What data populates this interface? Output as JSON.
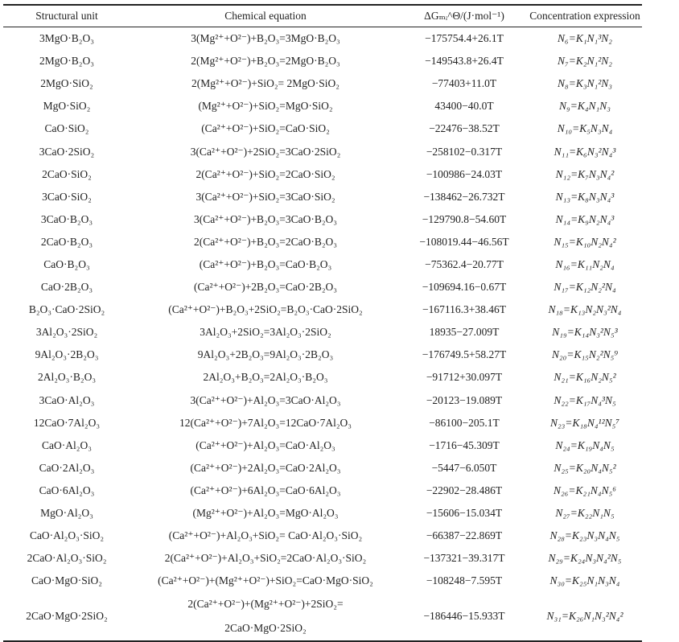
{
  "headers": [
    "Structural unit",
    "Chemical equation",
    "ΔGₘᵢ^Θ/(J·mol⁻¹)",
    "Concentration expression"
  ],
  "rows": [
    {
      "unit": "3MgO·B₂O₃",
      "eq": "3(Mg²⁺+O²⁻)+B₂O₃=3MgO·B₂O₃",
      "dg": "−175754.4+26.1T",
      "conc": "N₆=K₁N₁³N₂"
    },
    {
      "unit": "2MgO·B₂O₃",
      "eq": "2(Mg²⁺+O²⁻)+B₂O₃=2MgO·B₂O₃",
      "dg": "−149543.8+26.4T",
      "conc": "N₇=K₂N₁²N₂"
    },
    {
      "unit": "2MgO·SiO₂",
      "eq": "2(Mg²⁺+O²⁻)+SiO₂= 2MgO·SiO₂",
      "dg": "−77403+11.0T",
      "conc": "N₈=K₃N₁²N₃"
    },
    {
      "unit": "MgO·SiO₂",
      "eq": "(Mg²⁺+O²⁻)+SiO₂=MgO·SiO₂",
      "dg": "43400−40.0T",
      "conc": "N₉=K₄N₁N₃"
    },
    {
      "unit": "CaO·SiO₂",
      "eq": "(Ca²⁺+O²⁻)+SiO₂=CaO·SiO₂",
      "dg": "−22476−38.52T",
      "conc": "N₁₀=K₅N₃N₄"
    },
    {
      "unit": "3CaO·2SiO₂",
      "eq": "3(Ca²⁺+O²⁻)+2SiO₂=3CaO·2SiO₂",
      "dg": "−258102−0.317T",
      "conc": "N₁₁=K₆N₃²N₄³"
    },
    {
      "unit": "2CaO·SiO₂",
      "eq": "2(Ca²⁺+O²⁻)+SiO₂=2CaO·SiO₂",
      "dg": "−100986−24.03T",
      "conc": "N₁₂=K₇N₃N₄²"
    },
    {
      "unit": "3CaO·SiO₂",
      "eq": "3(Ca²⁺+O²⁻)+SiO₂=3CaO·SiO₂",
      "dg": "−138462−26.732T",
      "conc": "N₁₃=K₈N₃N₄³"
    },
    {
      "unit": "3CaO·B₂O₃",
      "eq": "3(Ca²⁺+O²⁻)+B₂O₃=3CaO·B₂O₃",
      "dg": "−129790.8−54.60T",
      "conc": "N₁₄=K₉N₂N₄³"
    },
    {
      "unit": "2CaO·B₂O₃",
      "eq": "2(Ca²⁺+O²⁻)+B₂O₃=2CaO·B₂O₃",
      "dg": "−108019.44−46.56T",
      "conc": "N₁₅=K₁₀N₂N₄²"
    },
    {
      "unit": "CaO·B₂O₃",
      "eq": "(Ca²⁺+O²⁻)+B₂O₃=CaO·B₂O₃",
      "dg": "−75362.4−20.77T",
      "conc": "N₁₆=K₁₁N₂N₄"
    },
    {
      "unit": "CaO·2B₂O₃",
      "eq": "(Ca²⁺+O²⁻)+2B₂O₃=CaO·2B₂O₃",
      "dg": "−109694.16−0.67T",
      "conc": "N₁₇=K₁₂N₂²N₄"
    },
    {
      "unit": "B₂O₃·CaO·2SiO₂",
      "eq": "(Ca²⁺+O²⁻)+B₂O₃+2SiO₂=B₂O₃·CaO·2SiO₂",
      "dg": "−167116.3+38.46T",
      "conc": "N₁₈=K₁₃N₂N₃²N₄"
    },
    {
      "unit": "3Al₂O₃·2SiO₂",
      "eq": "3Al₂O₃+2SiO₂=3Al₂O₃·2SiO₂",
      "dg": "18935−27.009T",
      "conc": "N₁₉=K₁₄N₃²N₅³"
    },
    {
      "unit": "9Al₂O₃·2B₂O₃",
      "eq": "9Al₂O₃+2B₂O₃=9Al₂O₃·2B₂O₃",
      "dg": "−176749.5+58.27T",
      "conc": "N₂₀=K₁₅N₂²N₅⁹"
    },
    {
      "unit": "2Al₂O₃·B₂O₃",
      "eq": "2Al₂O₃+B₂O₃=2Al₂O₃·B₂O₃",
      "dg": "−91712+30.097T",
      "conc": "N₂₁=K₁₆N₂N₅²"
    },
    {
      "unit": "3CaO·Al₂O₃",
      "eq": "3(Ca²⁺+O²⁻)+Al₂O₃=3CaO·Al₂O₃",
      "dg": "−20123−19.089T",
      "conc": "N₂₂=K₁₇N₄³N₅"
    },
    {
      "unit": "12CaO·7Al₂O₃",
      "eq": "12(Ca²⁺+O²⁻)+7Al₂O₃=12CaO·7Al₂O₃",
      "dg": "−86100−205.1T",
      "conc": "N₂₃=K₁₈N₄¹²N₅⁷"
    },
    {
      "unit": "CaO·Al₂O₃",
      "eq": "(Ca²⁺+O²⁻)+Al₂O₃=CaO·Al₂O₃",
      "dg": "−1716−45.309T",
      "conc": "N₂₄=K₁₉N₄N₅"
    },
    {
      "unit": "CaO·2Al₂O₃",
      "eq": "(Ca²⁺+O²⁻)+2Al₂O₃=CaO·2Al₂O₃",
      "dg": "−5447−6.050T",
      "conc": "N₂₅=K₂₀N₄N₅²"
    },
    {
      "unit": "CaO·6Al₂O₃",
      "eq": "(Ca²⁺+O²⁻)+6Al₂O₃=CaO·6Al₂O₃",
      "dg": "−22902−28.486T",
      "conc": "N₂₆=K₂₁N₄N₅⁶"
    },
    {
      "unit": "MgO·Al₂O₃",
      "eq": "(Mg²⁺+O²⁻)+Al₂O₃=MgO·Al₂O₃",
      "dg": "−15606−15.034T",
      "conc": "N₂₇=K₂₂N₁N₅"
    },
    {
      "unit": "CaO·Al₂O₃·SiO₂",
      "eq": "(Ca²⁺+O²⁻)+Al₂O₃+SiO₂= CaO·Al₂O₃·SiO₂",
      "dg": "−66387−22.869T",
      "conc": "N₂₈=K₂₃N₃N₄N₅"
    },
    {
      "unit": "2CaO·Al₂O₃·SiO₂",
      "eq": "2(Ca²⁺+O²⁻)+Al₂O₃+SiO₂=2CaO·Al₂O₃·SiO₂",
      "dg": "−137321−39.317T",
      "conc": "N₂₉=K₂₄N₃N₄²N₅"
    },
    {
      "unit": "CaO·MgO·SiO₂",
      "eq": "(Ca²⁺+O²⁻)+(Mg²⁺+O²⁻)+SiO₂=CaO·MgO·SiO₂",
      "dg": "−108248−7.595T",
      "conc": "N₃₀=K₂₅N₁N₃N₄"
    }
  ],
  "last_row": {
    "unit": "2CaO·MgO·2SiO₂",
    "eq_line1": "2(Ca²⁺+O²⁻)+(Mg²⁺+O²⁻)+2SiO₂=",
    "eq_line2": "2CaO·MgO·2SiO₂",
    "dg": "−186446−15.933T",
    "conc": "N₃₁=K₂₆N₁N₃²N₄²"
  }
}
